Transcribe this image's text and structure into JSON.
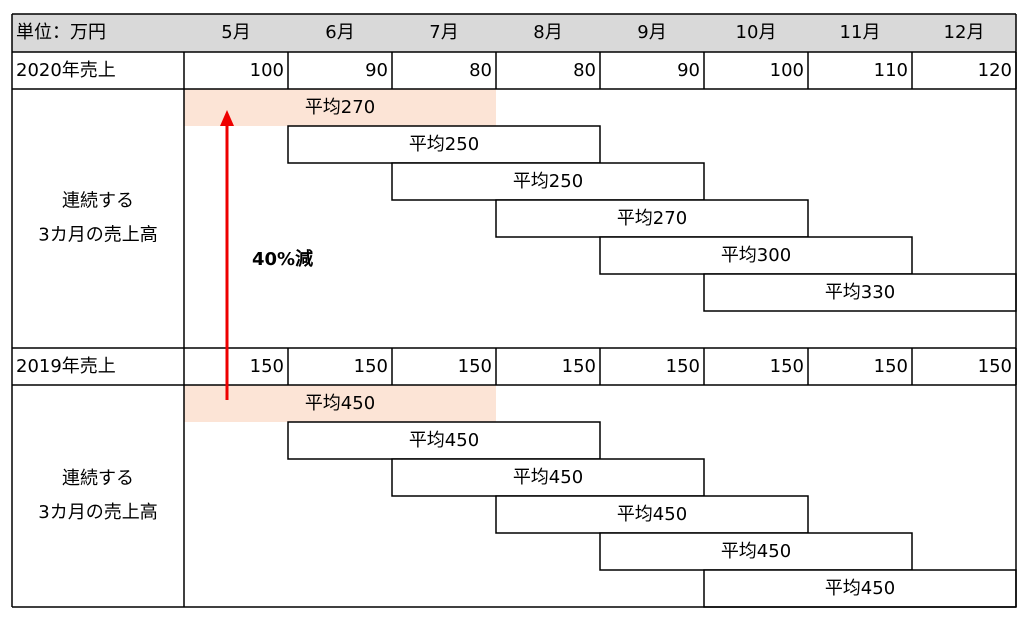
{
  "header": {
    "unit": "単位：万円",
    "months": [
      "5月",
      "6月",
      "7月",
      "8月",
      "9月",
      "10月",
      "11月",
      "12月"
    ]
  },
  "sales_2020": {
    "label": "2020年売上",
    "values": [
      100,
      90,
      80,
      80,
      90,
      100,
      110,
      120
    ]
  },
  "averages_2020": {
    "label": [
      "連続する",
      "3カ月の売上高"
    ],
    "bars": [
      "平均270",
      "平均250",
      "平均250",
      "平均270",
      "平均300",
      "平均330"
    ]
  },
  "sales_2019": {
    "label": "2019年売上",
    "values": [
      150,
      150,
      150,
      150,
      150,
      150,
      150,
      150
    ]
  },
  "averages_2019": {
    "label": [
      "連続する",
      "3カ月の売上高"
    ],
    "bars": [
      "平均450",
      "平均450",
      "平均450",
      "平均450",
      "平均450",
      "平均450"
    ]
  },
  "annotation": "40%減"
}
